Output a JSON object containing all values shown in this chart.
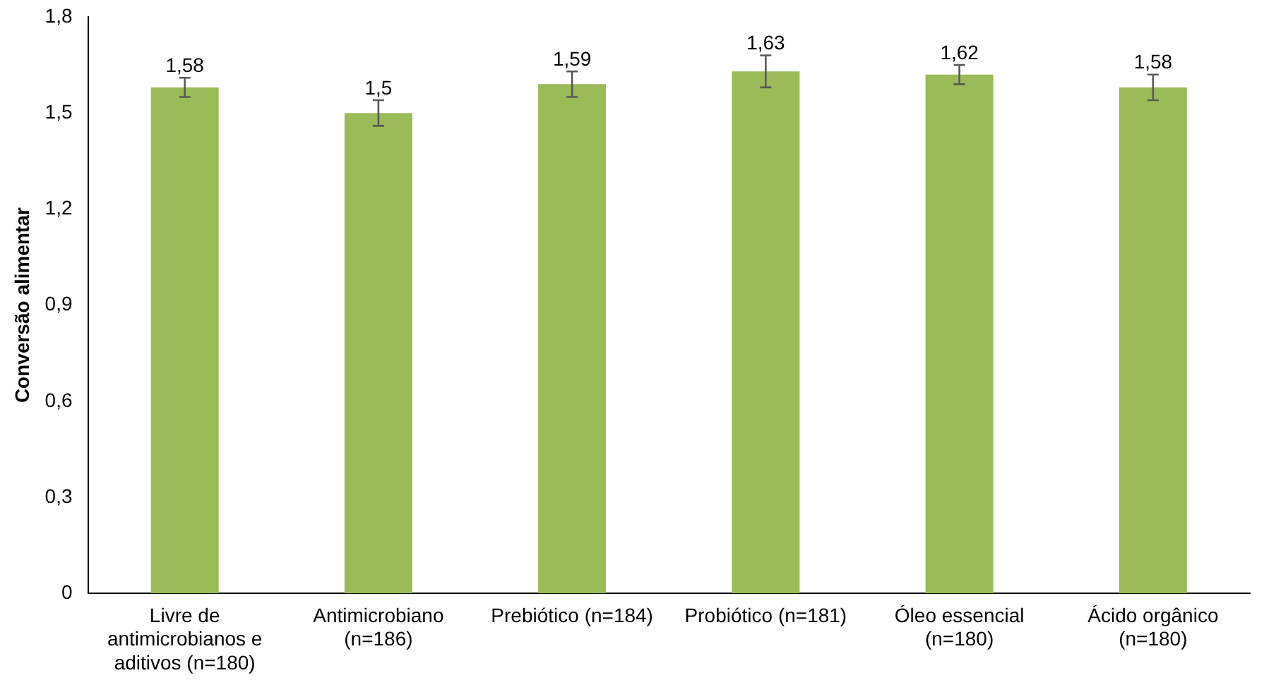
{
  "chart_data": {
    "type": "bar",
    "ylabel": "Conversão alimentar",
    "categories": [
      "Livre de antimicrobianos e aditivos (n=180)",
      "Antimicrobiano (n=186)",
      "Prebiótico (n=184)",
      "Probiótico (n=181)",
      "Óleo essencial (n=180)",
      "Ácido orgânico (n=180)"
    ],
    "values": [
      1.58,
      1.5,
      1.59,
      1.63,
      1.62,
      1.58
    ],
    "value_labels": [
      "1,58",
      "1,5",
      "1,59",
      "1,63",
      "1,62",
      "1,58"
    ],
    "errors": [
      0.03,
      0.04,
      0.04,
      0.05,
      0.03,
      0.04
    ],
    "color": "#9bbb59",
    "ylim": [
      0,
      1.8
    ],
    "yticks": [
      {
        "value": 0,
        "label": "0"
      },
      {
        "value": 0.3,
        "label": "0,3"
      },
      {
        "value": 0.6,
        "label": "0,6"
      },
      {
        "value": 0.9,
        "label": "0,9"
      },
      {
        "value": 1.2,
        "label": "1,2"
      },
      {
        "value": 1.5,
        "label": "1,5"
      },
      {
        "value": 1.8,
        "label": "1,8"
      }
    ],
    "grid": false,
    "legend": false
  }
}
